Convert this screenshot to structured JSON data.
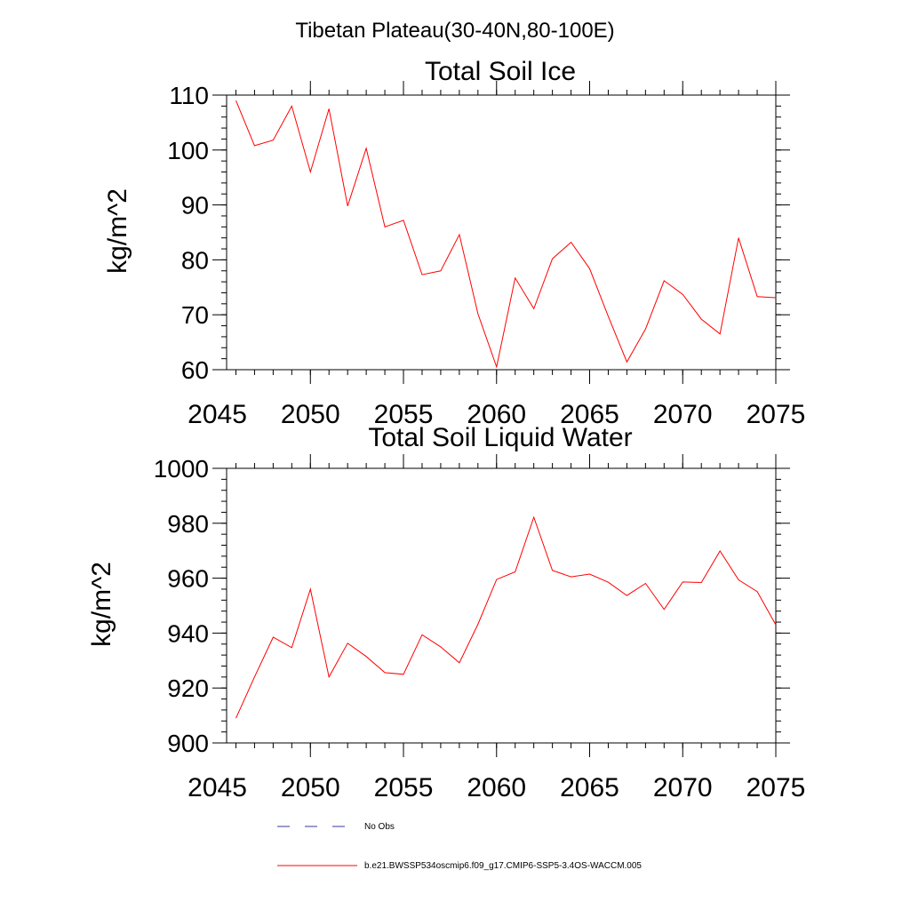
{
  "suptitle": "Tibetan Plateau(30-40N,80-100E)",
  "legend": {
    "no_obs_label": "No Obs",
    "model_label": "b.e21.BWSSP534oscmip6.f09_g17.CMIP6-SSP5-3.4OS-WACCM.005",
    "no_obs_color": "#3a3a9a",
    "model_color": "#ff0000"
  },
  "chart_data": [
    {
      "type": "line",
      "title": "Total Soil Ice",
      "xlabel": "",
      "ylabel": "kg/m^2",
      "xlim": [
        2045.5,
        2075
      ],
      "ylim": [
        60,
        110
      ],
      "x_ticks": [
        2045,
        2050,
        2055,
        2060,
        2065,
        2070,
        2075
      ],
      "y_ticks": [
        60,
        70,
        80,
        90,
        100,
        110
      ],
      "y_minor_step": 2,
      "x_minor_step": 1,
      "grid": false,
      "series": [
        {
          "color": "#ff0000",
          "x": [
            2046,
            2047,
            2048,
            2049,
            2050,
            2051,
            2052,
            2053,
            2054,
            2055,
            2056,
            2057,
            2058,
            2059,
            2060,
            2061,
            2062,
            2063,
            2064,
            2065,
            2066,
            2067,
            2068,
            2069,
            2070,
            2071,
            2072,
            2073,
            2074,
            2075
          ],
          "values": [
            109,
            100.8,
            101.8,
            108,
            96,
            107.5,
            89.8,
            100.3,
            86,
            87.2,
            77.3,
            78,
            84.6,
            70.2,
            60.5,
            76.7,
            71.1,
            80.2,
            83.2,
            78.4,
            69.7,
            61.4,
            67.4,
            76.2,
            73.7,
            69.2,
            66.5,
            84,
            73.3,
            73.1
          ]
        }
      ]
    },
    {
      "type": "line",
      "title": "Total Soil Liquid Water",
      "xlabel": "",
      "ylabel": "kg/m^2",
      "xlim": [
        2045.5,
        2075
      ],
      "ylim": [
        900,
        1000
      ],
      "x_ticks": [
        2045,
        2050,
        2055,
        2060,
        2065,
        2070,
        2075
      ],
      "y_ticks": [
        900,
        920,
        940,
        960,
        980,
        1000
      ],
      "y_minor_step": 4,
      "x_minor_step": 1,
      "grid": false,
      "series": [
        {
          "color": "#ff0000",
          "x": [
            2046,
            2047,
            2048,
            2049,
            2050,
            2051,
            2052,
            2053,
            2054,
            2055,
            2056,
            2057,
            2058,
            2059,
            2060,
            2061,
            2062,
            2063,
            2064,
            2065,
            2066,
            2067,
            2068,
            2069,
            2070,
            2071,
            2072,
            2073,
            2074,
            2075
          ],
          "values": [
            909,
            924,
            938.5,
            934.7,
            956,
            924,
            936.3,
            931.5,
            925.6,
            925,
            939.4,
            935,
            929.2,
            943.2,
            959.5,
            962.3,
            982.2,
            962.8,
            960.5,
            961.5,
            958.5,
            953.7,
            958.1,
            948.6,
            958.6,
            958.4,
            969.9,
            959.4,
            955.1,
            943
          ]
        }
      ]
    }
  ]
}
